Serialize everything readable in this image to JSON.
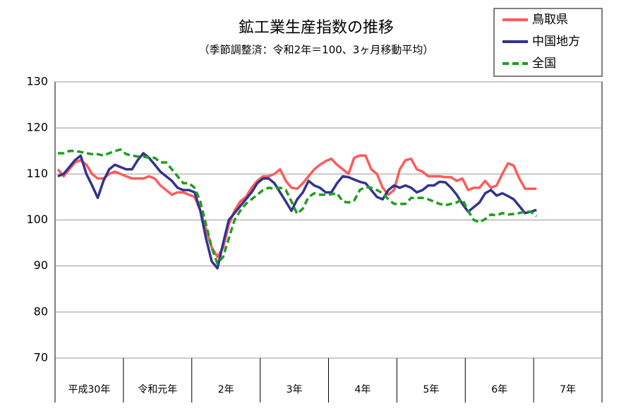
{
  "chart_data": {
    "type": "line",
    "title": "鉱工業生産指数の推移",
    "subtitle": "（季節調整済：令和2年＝100、3ヶ月移動平均）",
    "groups": [
      "平成30年",
      "令和元年",
      "2年",
      "3年",
      "4年",
      "5年",
      "6年",
      "7年"
    ],
    "ylim": [
      70,
      130
    ],
    "yticks": [
      70,
      80,
      90,
      100,
      110,
      120,
      130
    ],
    "grid": true,
    "legend": "top-right",
    "series": [
      {
        "name": "鳥取県",
        "color": "#ff5b5b",
        "dash": false,
        "values": [
          111,
          109.5,
          111,
          112.5,
          113,
          112,
          110,
          109,
          109,
          110,
          110.5,
          110,
          109.5,
          109,
          109,
          109,
          109.5,
          109,
          107.5,
          106.5,
          105.5,
          106,
          106,
          105.5,
          105,
          102,
          98,
          94,
          92,
          94,
          99,
          102,
          104,
          105,
          107,
          108.5,
          109.5,
          109.5,
          110,
          111,
          108.5,
          107,
          106.8,
          108,
          109.5,
          111,
          112,
          112.8,
          113.3,
          112,
          111,
          110,
          113.5,
          114,
          114,
          111,
          110,
          107,
          105.5,
          106.5,
          111,
          113,
          113.3,
          111,
          110.5,
          109.5,
          109.5,
          109.5,
          109.3,
          109.3,
          108.5,
          109,
          106.5,
          107,
          107,
          108.5,
          107,
          107.5,
          110,
          112.3,
          111.8,
          109,
          106.8,
          106.8,
          106.8
        ]
      },
      {
        "name": "中国地方",
        "color": "#33338f",
        "dash": false,
        "values": [
          109.5,
          110,
          111.5,
          113,
          114,
          110,
          107.5,
          104.8,
          108.5,
          111,
          112,
          111.5,
          111,
          111,
          113,
          114.5,
          113.5,
          112,
          110.5,
          109.5,
          108.5,
          107,
          106.5,
          106.5,
          106,
          102,
          96,
          91,
          89.5,
          95,
          100,
          101.5,
          103,
          104.5,
          106,
          108,
          109,
          109,
          108,
          106,
          104,
          102,
          104.5,
          106,
          108.5,
          107.5,
          107,
          106,
          106,
          108,
          109.5,
          109.3,
          108.8,
          108.3,
          108,
          106.5,
          105,
          104.5,
          106.5,
          107.5,
          107,
          107.5,
          107,
          106,
          106.5,
          107.5,
          107.5,
          108.3,
          108.2,
          107,
          105.5,
          103.5,
          101.8,
          102.8,
          103.8,
          105.8,
          106.5,
          105.3,
          105.8,
          105.2,
          104.5,
          103,
          101.5,
          101.8,
          102.2
        ]
      },
      {
        "name": "全国",
        "color": "#1e9e1e",
        "dash": true,
        "values": [
          114.5,
          114.5,
          115,
          115,
          114.8,
          114.5,
          114.3,
          114.3,
          114,
          114.5,
          115,
          115.3,
          114.3,
          114,
          113.8,
          113.8,
          113.5,
          113.5,
          112.5,
          112.5,
          111,
          109.5,
          108,
          108,
          107,
          104,
          99,
          94,
          90.5,
          92,
          96,
          100,
          102,
          103.5,
          104.5,
          105.5,
          106.5,
          107,
          106.8,
          107,
          106.5,
          104,
          101.3,
          102.5,
          105,
          105.8,
          105.5,
          105.5,
          105.6,
          105.8,
          104,
          103.8,
          104.2,
          106.5,
          107.2,
          107,
          106.5,
          105.8,
          104.5,
          103.5,
          103.5,
          103.5,
          104.8,
          104.8,
          104.8,
          104.5,
          104,
          103.5,
          103.2,
          103.5,
          103.8,
          104.5,
          102,
          100,
          99.5,
          100.2,
          101.2,
          101,
          101.5,
          101.2,
          101.3,
          101.5,
          101.8,
          101.8,
          100.8
        ]
      }
    ]
  }
}
